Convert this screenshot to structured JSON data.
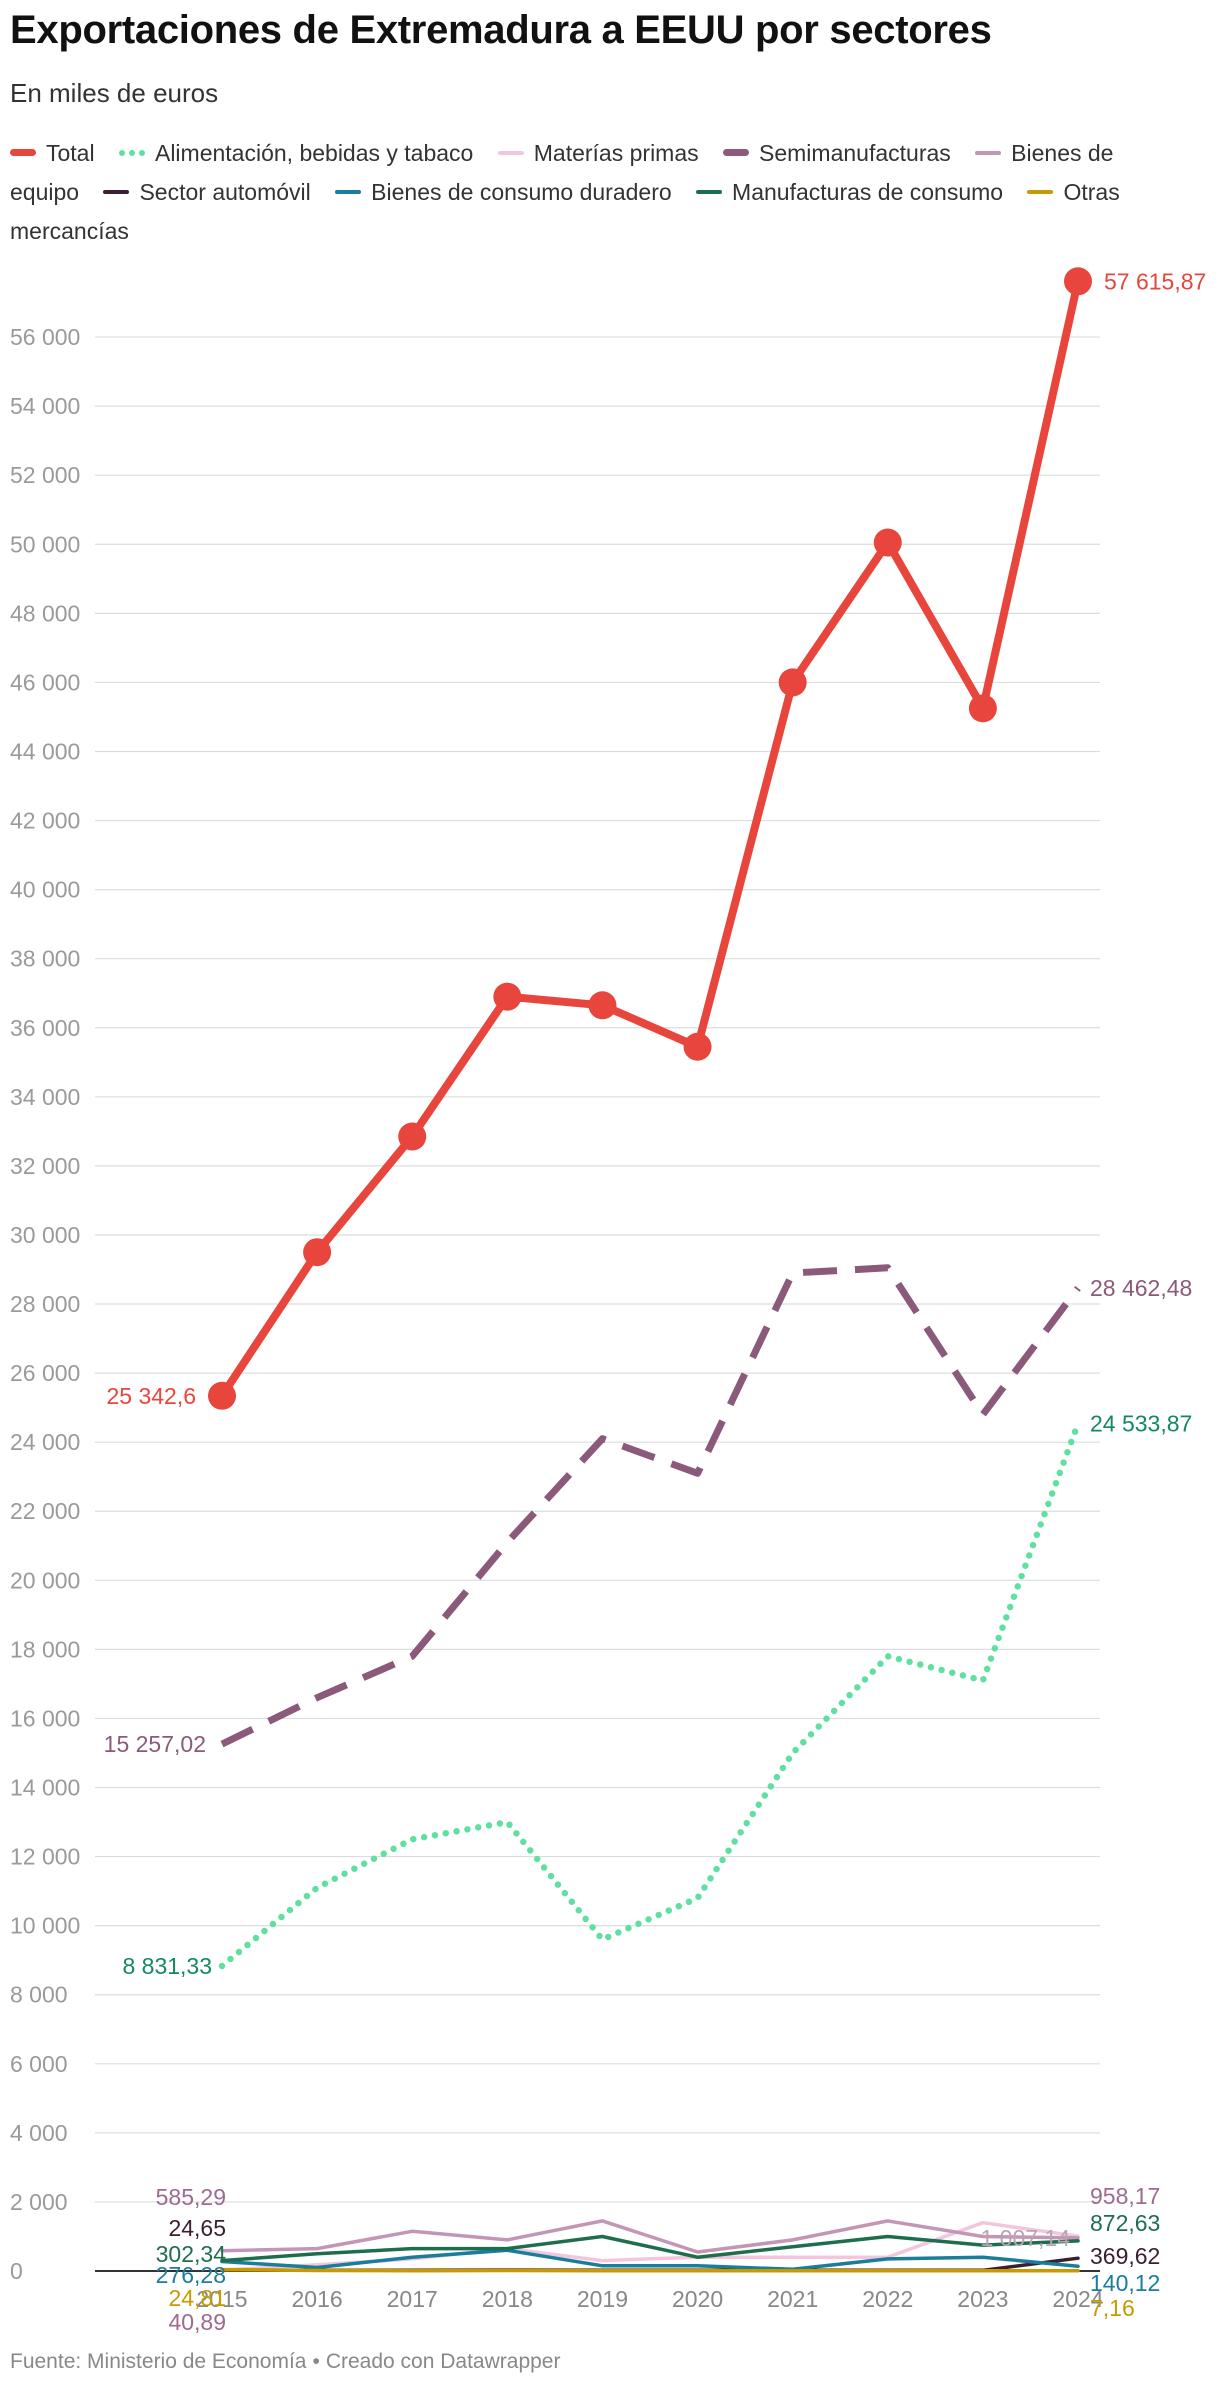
{
  "title": "Exportaciones de Extremadura a EEUU por sectores",
  "subtitle": "En miles de euros",
  "footer": {
    "source": "Fuente: Ministerio de Economía",
    "separator": "•",
    "credit": "Creado con Datawrapper"
  },
  "chart_data": {
    "type": "line",
    "title": "Exportaciones de Extremadura a EEUU por sectores",
    "subtitle": "En miles de euros",
    "xlabel": "",
    "ylabel": "",
    "x": [
      "2015",
      "2016",
      "2017",
      "2018",
      "2019",
      "2020",
      "2021",
      "2022",
      "2023",
      "2024"
    ],
    "ylim": [
      0,
      58000
    ],
    "yticks": [
      0,
      2000,
      4000,
      6000,
      8000,
      10000,
      12000,
      14000,
      16000,
      18000,
      20000,
      22000,
      24000,
      26000,
      28000,
      30000,
      32000,
      34000,
      36000,
      38000,
      40000,
      42000,
      44000,
      46000,
      48000,
      50000,
      52000,
      54000,
      56000
    ],
    "ytick_labels": [
      "0",
      "2 000",
      "4 000",
      "6 000",
      "8 000",
      "10 000",
      "12 000",
      "14 000",
      "16 000",
      "18 000",
      "20 000",
      "22 000",
      "24 000",
      "26 000",
      "28 000",
      "30 000",
      "32 000",
      "34 000",
      "36 000",
      "38 000",
      "40 000",
      "42 000",
      "44 000",
      "46 000",
      "48 000",
      "50 000",
      "52 000",
      "54 000",
      "56 000"
    ],
    "grid": true,
    "legend_placement": "top",
    "series": [
      {
        "name": "Total",
        "color": "#e8453c",
        "style": "solid-markers",
        "values": [
          25342.6,
          29500,
          32850,
          36900,
          36650,
          35450,
          46000,
          50050,
          45250,
          57615.87
        ],
        "start_label": "25 342,6",
        "end_label": "57 615,87"
      },
      {
        "name": "Alimentación, bebidas y tabaco",
        "color": "#60e0a0",
        "style": "dotted",
        "values": [
          8831.33,
          11100,
          12500,
          13000,
          9600,
          10800,
          15000,
          17800,
          17100,
          24533.87
        ],
        "start_label": "8 831,33",
        "end_label": "24 533,87",
        "label_color": "#138a5e"
      },
      {
        "name": "Materías primas",
        "color": "#f4c6dd",
        "style": "solid",
        "values": [
          24.81,
          180,
          350,
          650,
          300,
          400,
          400,
          400,
          1400,
          1007.14
        ],
        "start_label": "24,81",
        "end_label": "1 007,14"
      },
      {
        "name": "Semimanufacturas",
        "color": "#8b5a7a",
        "style": "dashed",
        "values": [
          15257.02,
          16600,
          17800,
          21100,
          24100,
          23100,
          28900,
          29050,
          24800,
          28462.48
        ],
        "start_label": "15 257,02",
        "end_label": "28 462,48"
      },
      {
        "name": "Bienes de equipo",
        "color": "#c496b6",
        "style": "solid",
        "values": [
          585.29,
          650,
          1150,
          900,
          1450,
          550,
          900,
          1450,
          1000,
          958.17
        ],
        "start_label": "585,29",
        "end_label": "958,17"
      },
      {
        "name": "Sector automóvil",
        "color": "#3a1f33",
        "style": "solid",
        "values": [
          24.65,
          20,
          20,
          30,
          20,
          20,
          20,
          20,
          20,
          369.62
        ],
        "start_label": "24,65",
        "end_label": "369,62"
      },
      {
        "name": "Bienes de consumo duradero",
        "color": "#1a7d9c",
        "style": "solid",
        "values": [
          276.28,
          100,
          400,
          600,
          150,
          150,
          50,
          350,
          400,
          140.12
        ],
        "start_label": "276,28",
        "end_label": "140,12"
      },
      {
        "name": "Manufacturas de consumo",
        "color": "#1e6e4e",
        "style": "solid",
        "values": [
          302.34,
          500,
          650,
          650,
          1000,
          400,
          700,
          1000,
          750,
          872.63
        ],
        "start_label": "302,34",
        "end_label": "872,63"
      },
      {
        "name": "Otras mercancías",
        "color": "#c99a00",
        "style": "solid",
        "values": [
          40.89,
          15,
          10,
          15,
          10,
          10,
          10,
          10,
          10,
          7.16
        ],
        "start_label": "40,89",
        "end_label": "7,16"
      }
    ]
  }
}
